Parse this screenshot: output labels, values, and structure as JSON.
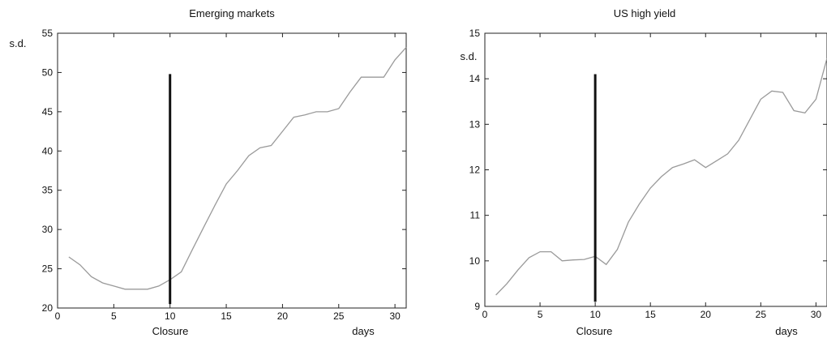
{
  "chart_data": [
    {
      "type": "line",
      "title": "Emerging markets",
      "ylabel": "s.d.",
      "xlabel": "days",
      "marker_label": "Closure",
      "marker_x": 10,
      "marker_y_range": [
        20.5,
        49.8
      ],
      "xlim": [
        0,
        31
      ],
      "ylim": [
        20,
        55
      ],
      "xticks": [
        0,
        5,
        10,
        15,
        20,
        25,
        30
      ],
      "yticks": [
        20,
        25,
        30,
        35,
        40,
        45,
        50,
        55
      ],
      "grid": false,
      "line_color": "#9a9a9a",
      "marker_color": "#111111",
      "series": [
        {
          "x": [
            1,
            2,
            3,
            4,
            5,
            6,
            7,
            8,
            9,
            10,
            11,
            12,
            13,
            14,
            15,
            16,
            17,
            18,
            19,
            20,
            21,
            22,
            23,
            24,
            25,
            26,
            27,
            28,
            29,
            30,
            31
          ],
          "values": [
            26.5,
            25.5,
            24.0,
            23.2,
            22.8,
            22.4,
            22.4,
            22.4,
            22.8,
            23.6,
            24.6,
            27.5,
            30.3,
            33.1,
            35.8,
            37.5,
            39.4,
            40.4,
            40.7,
            42.5,
            44.3,
            44.6,
            45.0,
            45.0,
            45.4,
            47.5,
            49.4,
            49.4,
            49.4,
            51.6,
            53.2
          ]
        }
      ]
    },
    {
      "type": "line",
      "title": "US high yield",
      "ylabel": "s.d.",
      "xlabel": "days",
      "marker_label": "Closure",
      "marker_x": 10,
      "marker_y_range": [
        9.1,
        14.1
      ],
      "xlim": [
        0,
        31
      ],
      "ylim": [
        9,
        15
      ],
      "xticks": [
        0,
        5,
        10,
        15,
        20,
        25,
        30
      ],
      "yticks": [
        9,
        10,
        11,
        12,
        13,
        14,
        15
      ],
      "grid": false,
      "line_color": "#9a9a9a",
      "marker_color": "#111111",
      "series": [
        {
          "x": [
            1,
            2,
            3,
            4,
            5,
            6,
            7,
            8,
            9,
            10,
            11,
            12,
            13,
            14,
            15,
            16,
            17,
            18,
            19,
            20,
            21,
            22,
            23,
            24,
            25,
            26,
            27,
            28,
            29,
            30,
            31
          ],
          "values": [
            9.25,
            9.5,
            9.8,
            10.07,
            10.2,
            10.2,
            10.0,
            10.02,
            10.03,
            10.1,
            9.92,
            10.25,
            10.85,
            11.25,
            11.6,
            11.85,
            12.05,
            12.13,
            12.22,
            12.05,
            12.2,
            12.35,
            12.65,
            13.1,
            13.55,
            13.73,
            13.7,
            13.3,
            13.25,
            13.55,
            14.45
          ]
        }
      ]
    }
  ]
}
